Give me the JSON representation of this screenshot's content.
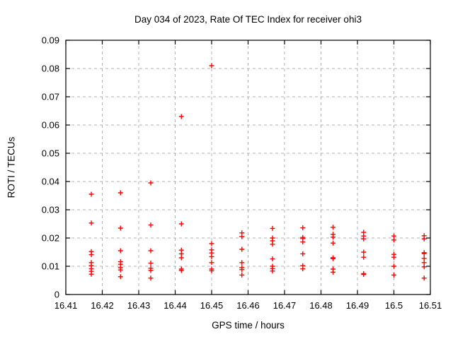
{
  "chart_data": {
    "type": "scatter",
    "title": "Day 034 of 2023, Rate Of TEC Index for receiver ohi3",
    "xlabel": "GPS time / hours",
    "ylabel": "ROTI / TECUs",
    "xlim": [
      16.41,
      16.51
    ],
    "ylim": [
      0,
      0.09
    ],
    "x_ticks": [
      16.41,
      16.42,
      16.43,
      16.44,
      16.45,
      16.46,
      16.47,
      16.48,
      16.49,
      16.5,
      16.51
    ],
    "x_tick_labels": [
      "16.41",
      "16.42",
      "16.43",
      "16.44",
      "16.45",
      "16.46",
      "16.47",
      "16.48",
      "16.49",
      "16.5",
      "16.51"
    ],
    "y_ticks": [
      0,
      0.01,
      0.02,
      0.03,
      0.04,
      0.05,
      0.06,
      0.07,
      0.08,
      0.09
    ],
    "y_tick_labels": [
      "0",
      "0.01",
      "0.02",
      "0.03",
      "0.04",
      "0.05",
      "0.06",
      "0.07",
      "0.08",
      "0.09"
    ],
    "grid": true,
    "legend": "none",
    "marker": "plus",
    "colors": {
      "marker": "#ff0000",
      "grid": "#b0b0b0",
      "axis": "#000000",
      "text": "#000000"
    },
    "series": [
      {
        "name": "roti",
        "points": [
          [
            16.417,
            0.0355
          ],
          [
            16.417,
            0.0253
          ],
          [
            16.417,
            0.0152
          ],
          [
            16.417,
            0.0141
          ],
          [
            16.417,
            0.0113
          ],
          [
            16.417,
            0.0102
          ],
          [
            16.417,
            0.0091
          ],
          [
            16.417,
            0.0082
          ],
          [
            16.417,
            0.0072
          ],
          [
            16.425,
            0.036
          ],
          [
            16.425,
            0.0235
          ],
          [
            16.425,
            0.0155
          ],
          [
            16.425,
            0.0116
          ],
          [
            16.425,
            0.0107
          ],
          [
            16.425,
            0.0095
          ],
          [
            16.425,
            0.0087
          ],
          [
            16.425,
            0.0063
          ],
          [
            16.4333,
            0.0395
          ],
          [
            16.4333,
            0.0246
          ],
          [
            16.4333,
            0.0155
          ],
          [
            16.4333,
            0.0111
          ],
          [
            16.4333,
            0.0093
          ],
          [
            16.4333,
            0.0085
          ],
          [
            16.4333,
            0.0058
          ],
          [
            16.4417,
            0.063
          ],
          [
            16.4417,
            0.025
          ],
          [
            16.4417,
            0.0157
          ],
          [
            16.4417,
            0.0144
          ],
          [
            16.4417,
            0.013
          ],
          [
            16.4417,
            0.009
          ],
          [
            16.4417,
            0.0085
          ],
          [
            16.45,
            0.081
          ],
          [
            16.45,
            0.018
          ],
          [
            16.45,
            0.0158
          ],
          [
            16.45,
            0.0147
          ],
          [
            16.45,
            0.0134
          ],
          [
            16.45,
            0.0113
          ],
          [
            16.45,
            0.009
          ],
          [
            16.45,
            0.0084
          ],
          [
            16.4583,
            0.0218
          ],
          [
            16.4583,
            0.0205
          ],
          [
            16.4583,
            0.016
          ],
          [
            16.4583,
            0.0113
          ],
          [
            16.4583,
            0.0095
          ],
          [
            16.4583,
            0.0088
          ],
          [
            16.4583,
            0.0069
          ],
          [
            16.4667,
            0.0234
          ],
          [
            16.4667,
            0.02
          ],
          [
            16.4667,
            0.019
          ],
          [
            16.4667,
            0.0178
          ],
          [
            16.4667,
            0.0126
          ],
          [
            16.4667,
            0.01
          ],
          [
            16.4667,
            0.0092
          ],
          [
            16.4667,
            0.0083
          ],
          [
            16.475,
            0.0236
          ],
          [
            16.475,
            0.0202
          ],
          [
            16.475,
            0.0198
          ],
          [
            16.475,
            0.0186
          ],
          [
            16.475,
            0.0144
          ],
          [
            16.475,
            0.0102
          ],
          [
            16.475,
            0.0091
          ],
          [
            16.4833,
            0.0238
          ],
          [
            16.4833,
            0.0213
          ],
          [
            16.4833,
            0.0203
          ],
          [
            16.4833,
            0.0182
          ],
          [
            16.4833,
            0.013
          ],
          [
            16.4833,
            0.0127
          ],
          [
            16.4833,
            0.009
          ],
          [
            16.4833,
            0.0079
          ],
          [
            16.4917,
            0.022
          ],
          [
            16.4917,
            0.0207
          ],
          [
            16.4917,
            0.0197
          ],
          [
            16.4917,
            0.015
          ],
          [
            16.4917,
            0.0132
          ],
          [
            16.4917,
            0.0074
          ],
          [
            16.4917,
            0.0071
          ],
          [
            16.5,
            0.0207
          ],
          [
            16.5,
            0.0193
          ],
          [
            16.5,
            0.0142
          ],
          [
            16.5,
            0.0132
          ],
          [
            16.5,
            0.01
          ],
          [
            16.5,
            0.0069
          ],
          [
            16.5083,
            0.0208
          ],
          [
            16.5083,
            0.0197
          ],
          [
            16.5083,
            0.0148
          ],
          [
            16.5083,
            0.0145
          ],
          [
            16.5083,
            0.0128
          ],
          [
            16.5083,
            0.0113
          ],
          [
            16.5083,
            0.0098
          ],
          [
            16.5083,
            0.0058
          ]
        ]
      }
    ]
  }
}
